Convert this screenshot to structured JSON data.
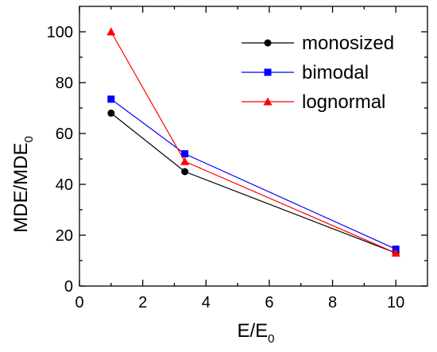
{
  "chart_data": {
    "type": "line",
    "xlabel": {
      "main": "E/E",
      "sub": "0"
    },
    "ylabel": {
      "main": "MDE/MDE",
      "sub": "0"
    },
    "xlim": [
      0,
      11
    ],
    "ylim": [
      0,
      110
    ],
    "x_ticks": [
      0,
      2,
      4,
      6,
      8,
      10
    ],
    "y_ticks": [
      0,
      20,
      40,
      60,
      80,
      100
    ],
    "x_tick_labels": [
      "0",
      "2",
      "4",
      "6",
      "8",
      "10"
    ],
    "y_tick_labels": [
      "0",
      "20",
      "40",
      "60",
      "80",
      "100"
    ],
    "grid": false,
    "legend_position": "top-right",
    "series": [
      {
        "name": "monosized",
        "color": "#000000",
        "marker": "circle",
        "x": [
          1,
          3.33,
          10
        ],
        "y": [
          68,
          45,
          13
        ]
      },
      {
        "name": "bimodal",
        "color": "#0000ff",
        "marker": "square",
        "x": [
          1,
          3.33,
          10
        ],
        "y": [
          73.5,
          52,
          14.5
        ]
      },
      {
        "name": "lognormal",
        "color": "#ff0000",
        "marker": "triangle",
        "x": [
          1,
          3.33,
          10
        ],
        "y": [
          100,
          49,
          13
        ]
      }
    ]
  }
}
